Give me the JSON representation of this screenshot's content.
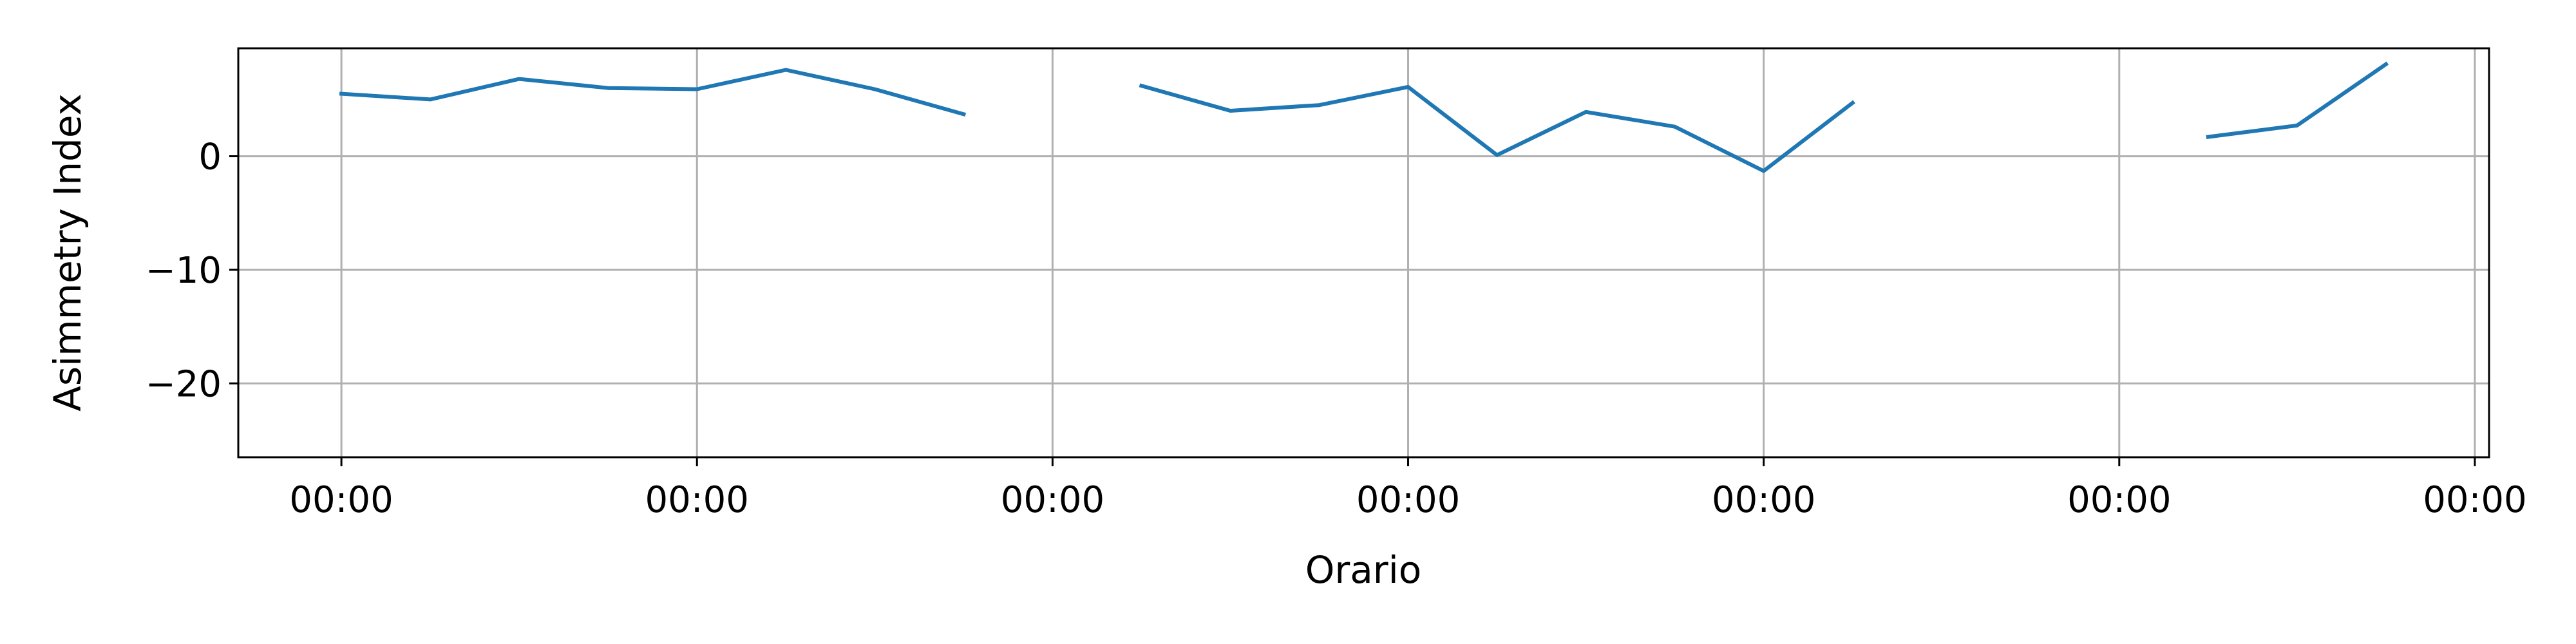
{
  "chart_data": {
    "type": "line",
    "title": "",
    "xlabel": "Orario",
    "ylabel": "Asimmetry Index",
    "x_ticks": [
      0,
      1,
      2,
      3,
      4,
      5,
      6
    ],
    "x_tick_labels": [
      "00:00",
      "00:00",
      "00:00",
      "00:00",
      "00:00",
      "00:00",
      "00:00"
    ],
    "xlim": [
      -0.29,
      6.04
    ],
    "ylim": [
      -26.5,
      9.5
    ],
    "y_ticks": [
      0,
      -10,
      -20
    ],
    "y_tick_labels": [
      "0",
      "−10",
      "−20"
    ],
    "grid": true,
    "series": [
      {
        "color": "#1f77b4",
        "segments": [
          [
            [
              0.0,
              5.5
            ],
            [
              0.25,
              5.0
            ],
            [
              0.5,
              6.8
            ],
            [
              0.75,
              6.0
            ],
            [
              1.0,
              5.9
            ],
            [
              1.25,
              7.6
            ],
            [
              1.5,
              5.9
            ],
            [
              1.75,
              3.7
            ]
          ],
          [
            [
              2.25,
              6.2
            ],
            [
              2.5,
              4.0
            ],
            [
              2.75,
              4.5
            ],
            [
              3.0,
              6.1
            ],
            [
              3.25,
              0.1
            ],
            [
              3.5,
              3.9
            ],
            [
              3.75,
              2.6
            ],
            [
              4.0,
              -1.3
            ],
            [
              4.25,
              4.7
            ]
          ],
          [
            [
              5.25,
              1.7
            ],
            [
              5.5,
              2.7
            ],
            [
              5.75,
              8.1
            ]
          ]
        ]
      }
    ]
  }
}
